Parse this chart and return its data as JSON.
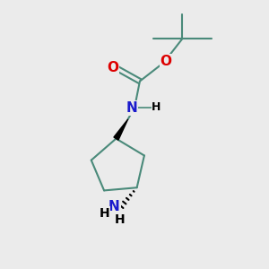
{
  "bg_color": "#ebebeb",
  "bond_color": "#4a8a7a",
  "bond_width": 1.5,
  "atom_color_N": "#1a1acc",
  "atom_color_O": "#dd0000",
  "atom_color_C": "#000000",
  "font_size_atoms": 11,
  "font_size_H": 9,
  "xlim": [
    0,
    10
  ],
  "ylim": [
    0,
    10
  ]
}
